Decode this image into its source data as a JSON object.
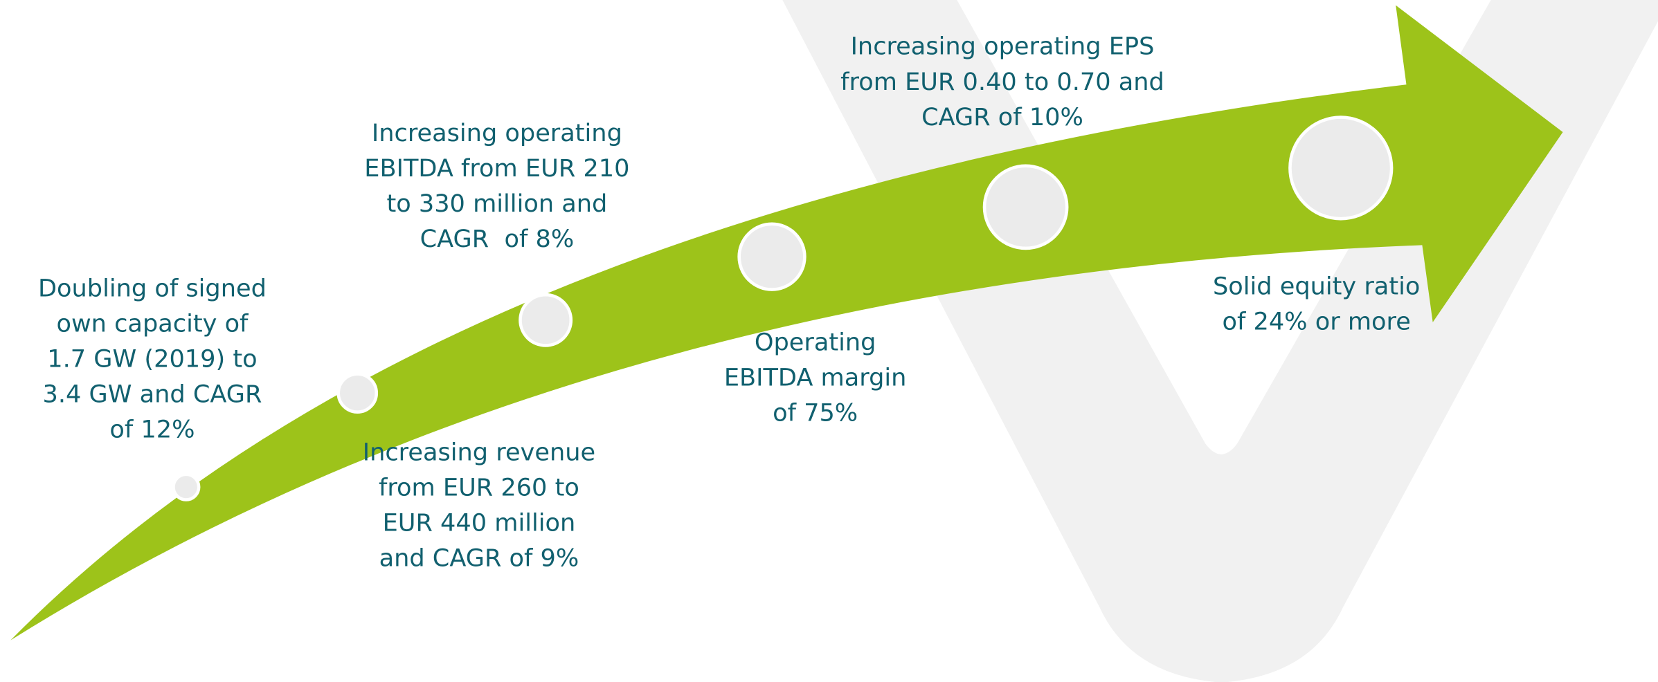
{
  "milestones": [
    {
      "lines": [
        "Doubling of signed",
        "own capacity of",
        "1.7 GW (2019) to",
        "3.4 GW and CAGR",
        "of 12%"
      ]
    },
    {
      "lines": [
        "Increasing revenue",
        "from EUR 260 to",
        "EUR 440 million",
        "and CAGR of 9%"
      ]
    },
    {
      "lines": [
        "Increasing operating",
        "EBITDA from EUR 210",
        "to 330 million and",
        "CAGR  of 8%"
      ]
    },
    {
      "lines": [
        "Operating",
        "EBITDA margin",
        "of 75%"
      ]
    },
    {
      "lines": [
        "Increasing operating EPS",
        "from EUR 0.40 to 0.70 and",
        "CAGR of 10%"
      ]
    },
    {
      "lines": [
        "Solid equity ratio",
        "of 24% or more"
      ]
    }
  ]
}
